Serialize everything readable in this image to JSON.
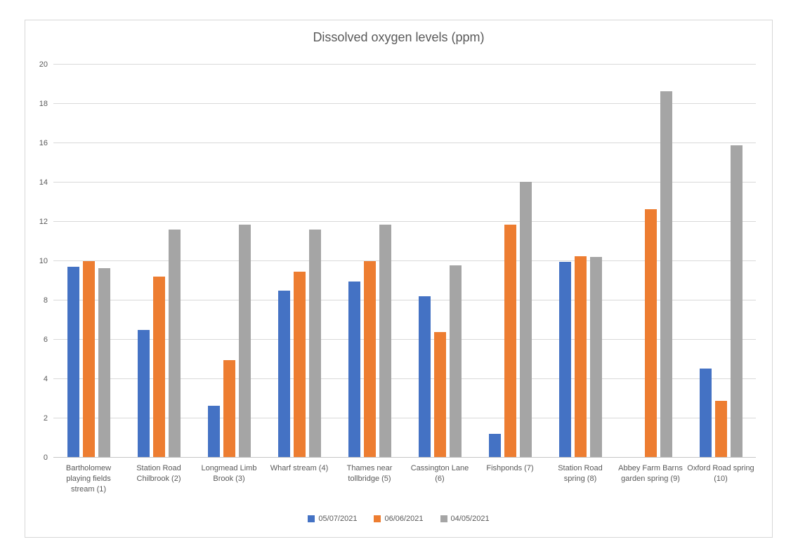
{
  "chart_data": {
    "type": "bar",
    "title": "Dissolved oxygen levels (ppm)",
    "xlabel": "",
    "ylabel": "",
    "ylim": [
      0,
      20
    ],
    "yticks": [
      0,
      2,
      4,
      6,
      8,
      10,
      12,
      14,
      16,
      18,
      20
    ],
    "grid": "horizontal",
    "legend_position": "bottom",
    "categories": [
      "Bartholomew playing fields stream (1)",
      "Station Road Chilbrook (2)",
      "Longmead Limb Brook (3)",
      "Wharf stream (4)",
      "Thames near tollbridge (5)",
      "Cassington Lane (6)",
      "Fishponds (7)",
      "Station Road spring (8)",
      "Abbey Farm Barns garden spring (9)",
      "Oxford Road spring (10)"
    ],
    "series": [
      {
        "name": "05/07/2021",
        "color": "#4472C4",
        "values": [
          9.7,
          6.5,
          2.65,
          8.5,
          8.95,
          8.2,
          1.2,
          9.95,
          0,
          4.55
        ]
      },
      {
        "name": "06/06/2021",
        "color": "#ED7D31",
        "values": [
          10.0,
          9.2,
          4.95,
          9.45,
          10.0,
          6.4,
          11.85,
          10.25,
          12.65,
          2.9
        ]
      },
      {
        "name": "04/05/2021",
        "color": "#A5A5A5",
        "values": [
          9.65,
          11.6,
          11.85,
          11.6,
          11.85,
          9.8,
          14.05,
          10.2,
          18.65,
          15.9
        ]
      }
    ]
  },
  "colors": {
    "title_text": "#595959",
    "axis_text": "#595959",
    "gridline": "#d9d9d9",
    "chart_border": "#d7d7d7"
  }
}
